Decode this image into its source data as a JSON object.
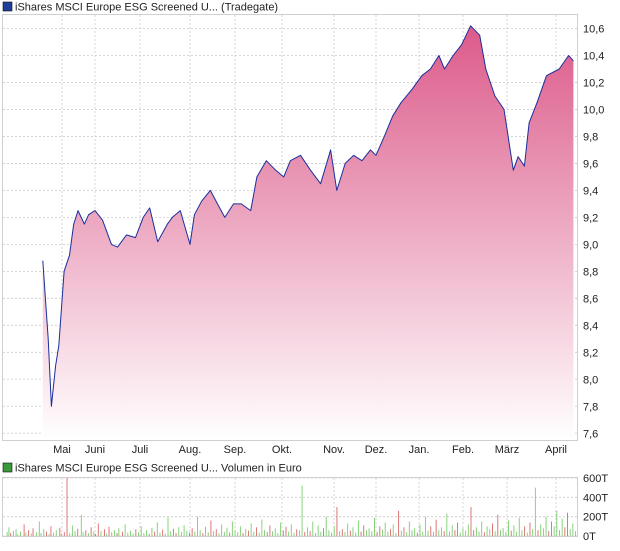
{
  "price_legend": {
    "label": "iShares MSCI Europe ESG Screened U... (Tradegate)",
    "swatch_color": "#1f3f9a"
  },
  "volume_legend": {
    "label": "iShares MSCI Europe ESG Screened U... Volumen in Euro",
    "swatch_color": "#3a9a3a"
  },
  "colors": {
    "price_line": "#1a2f9c",
    "area_top": "#dc5a8a",
    "area_bottom": "#ffffff",
    "grid": "#cccccc",
    "vol_up": "#7ccd6f",
    "vol_down": "#d86a6a"
  },
  "chart_data": [
    {
      "type": "area",
      "legend": "iShares MSCI Europe ESG Screened U... (Tradegate)",
      "x_tick_labels": [
        "Mai",
        "Juni",
        "Juli",
        "Aug.",
        "Sep.",
        "Okt.",
        "Nov.",
        "Dez.",
        "Jan.",
        "Feb.",
        "März",
        "April"
      ],
      "y_tick_labels": [
        "7,6",
        "7,8",
        "8,0",
        "8,2",
        "8,4",
        "8,6",
        "8,8",
        "9,0",
        "9,2",
        "9,4",
        "9,6",
        "9,8",
        "10,0",
        "10,2",
        "10,4",
        "10,6"
      ],
      "ylim": [
        7.55,
        10.7
      ],
      "grid": true,
      "y_axis_side": "right",
      "series": [
        {
          "x": [
            "2023-04-13",
            "2023-04-18",
            "2023-04-21",
            "2023-04-25",
            "2023-04-28",
            "2023-05-03",
            "2023-05-08",
            "2023-05-12",
            "2023-05-16",
            "2023-05-22",
            "2023-05-26",
            "2023-06-01",
            "2023-06-06",
            "2023-06-12",
            "2023-06-16",
            "2023-06-22",
            "2023-06-28",
            "2023-07-03",
            "2023-07-07",
            "2023-07-12",
            "2023-07-18",
            "2023-07-21",
            "2023-07-26",
            "2023-08-01",
            "2023-08-04",
            "2023-08-09",
            "2023-08-15",
            "2023-08-21",
            "2023-08-25",
            "2023-08-31",
            "2023-09-05",
            "2023-09-11",
            "2023-09-15",
            "2023-09-21",
            "2023-09-27",
            "2023-10-02",
            "2023-10-06",
            "2023-10-12",
            "2023-10-18",
            "2023-10-24",
            "2023-10-30",
            "2023-11-03",
            "2023-11-09",
            "2023-11-15",
            "2023-11-21",
            "2023-11-27",
            "2023-12-01",
            "2023-12-07",
            "2023-12-13",
            "2023-12-19",
            "2023-12-27",
            "2024-01-03",
            "2024-01-09",
            "2024-01-15",
            "2024-01-19",
            "2024-01-25",
            "2024-01-31",
            "2024-02-06",
            "2024-02-12",
            "2024-02-16",
            "2024-02-22",
            "2024-02-28",
            "2024-03-05",
            "2024-03-08",
            "2024-03-12",
            "2024-03-15",
            "2024-03-20",
            "2024-03-26",
            "2024-04-03",
            "2024-04-09",
            "2024-04-12"
          ],
          "values": [
            8.88,
            8.3,
            7.8,
            8.1,
            8.25,
            8.8,
            8.92,
            9.15,
            9.25,
            9.15,
            9.22,
            9.25,
            9.18,
            9.0,
            8.98,
            9.07,
            9.05,
            9.2,
            9.27,
            9.02,
            9.15,
            9.2,
            9.25,
            9.0,
            9.22,
            9.32,
            9.4,
            9.28,
            9.2,
            9.3,
            9.3,
            9.25,
            9.5,
            9.62,
            9.55,
            9.5,
            9.62,
            9.66,
            9.55,
            9.45,
            9.7,
            9.4,
            9.6,
            9.66,
            9.62,
            9.7,
            9.66,
            9.8,
            9.95,
            10.05,
            10.15,
            10.25,
            10.3,
            10.4,
            10.3,
            10.4,
            10.48,
            10.62,
            10.55,
            10.3,
            10.1,
            10.0,
            9.55,
            9.65,
            9.58,
            9.9,
            10.05,
            10.25,
            10.3,
            10.4,
            10.36
          ]
        }
      ]
    },
    {
      "type": "bar",
      "legend": "iShares MSCI Europe ESG Screened U... Volumen in Euro",
      "y_tick_labels": [
        "0T",
        "200T",
        "400T",
        "600T"
      ],
      "ylim": [
        0,
        600000
      ],
      "grid": true,
      "values": [
        0,
        0,
        0,
        40,
        0,
        90,
        0,
        30,
        0,
        0,
        55,
        0,
        0,
        70,
        0,
        20,
        0,
        0,
        45,
        0,
        0,
        0,
        120,
        0,
        35,
        0,
        0,
        60,
        0,
        0,
        25,
        0,
        80,
        0,
        0,
        0,
        40,
        0,
        0,
        150,
        0,
        30,
        0,
        0,
        70,
        0,
        0,
        45,
        0,
        0,
        20,
        0,
        100,
        0,
        0,
        35,
        0,
        0,
        60,
        0,
        0,
        0,
        85,
        0,
        25,
        0,
        0,
        40,
        0,
        0,
        600,
        0,
        0,
        30,
        0,
        0,
        110,
        0,
        0,
        50,
        0,
        0,
        75,
        0,
        0,
        0,
        220,
        0,
        40,
        0,
        0,
        60,
        0,
        0,
        30,
        0,
        0,
        90,
        0,
        0,
        45,
        0,
        20,
        0,
        0,
        130,
        0,
        0,
        50,
        0,
        0,
        0,
        70,
        0,
        25,
        0,
        0,
        95,
        0,
        0,
        40,
        0,
        0,
        60,
        0,
        0,
        30,
        0,
        80,
        0,
        0,
        0,
        45,
        0,
        0,
        120,
        0,
        0,
        35,
        0,
        0,
        55,
        0,
        0,
        25,
        0,
        0,
        70,
        0,
        0,
        40,
        0,
        0,
        100,
        0,
        0,
        30,
        0,
        0,
        60,
        0,
        0,
        20,
        0,
        0,
        85,
        0,
        0,
        45,
        0,
        0,
        140,
        0,
        0,
        35,
        0,
        0,
        65,
        0,
        0,
        25,
        0,
        0,
        190,
        0,
        0,
        50,
        0,
        0,
        75,
        0,
        0,
        30,
        0,
        0,
        90,
        0,
        0,
        40,
        0,
        0,
        110,
        0,
        0,
        55,
        0,
        0,
        35,
        0,
        0,
        80,
        0,
        0,
        45,
        0,
        0,
        200,
        0,
        0,
        60,
        0,
        0,
        30,
        0,
        0,
        95,
        0,
        0,
        40,
        0,
        0,
        160,
        0,
        0,
        50,
        0,
        0,
        70,
        0,
        0,
        25,
        0,
        0,
        120,
        0,
        0,
        45,
        0,
        0,
        85,
        0,
        0,
        35,
        0,
        0,
        150,
        0,
        0,
        60,
        0,
        0,
        40,
        0,
        0,
        100,
        0,
        0,
        30,
        0,
        0,
        75,
        0,
        0,
        55,
        0,
        0,
        130,
        0,
        0,
        45,
        0,
        0,
        90,
        0,
        0,
        35,
        0,
        0,
        170,
        0,
        0,
        60,
        0,
        0,
        40,
        0,
        0,
        110,
        0,
        0,
        50,
        0,
        0,
        80,
        0,
        0,
        30,
        0,
        0,
        140,
        0,
        0,
        55,
        0,
        0,
        95,
        0,
        0,
        45,
        0,
        0,
        120,
        0,
        0,
        35,
        0,
        0,
        70,
        0,
        0,
        60,
        0,
        0,
        520,
        0,
        0,
        40,
        0,
        0,
        90,
        0,
        0,
        50,
        0,
        0,
        150,
        0,
        0,
        30,
        0,
        0,
        110,
        0,
        0,
        45,
        0,
        0,
        80,
        0,
        0,
        200,
        0,
        0,
        60,
        0,
        0,
        35,
        0,
        0,
        100,
        0,
        0,
        300,
        0,
        0,
        50,
        0,
        0,
        70,
        0,
        0,
        40,
        0,
        0,
        130,
        0,
        0,
        55,
        0,
        0,
        90,
        0,
        0,
        35,
        0,
        0,
        160,
        0,
        0,
        45,
        0,
        0,
        110,
        0,
        0,
        60,
        0,
        0,
        80,
        0,
        0,
        50,
        0,
        0,
        190,
        0,
        0,
        40,
        0,
        0,
        100,
        0,
        0,
        65,
        0,
        0,
        140,
        0,
        0,
        45,
        0,
        0,
        70,
        0,
        0,
        120,
        0,
        0,
        30,
        0,
        0,
        260,
        0,
        0,
        55,
        0,
        0,
        90,
        0,
        0,
        40,
        0,
        0,
        150,
        0,
        0,
        60,
        0,
        0,
        80,
        0,
        0,
        35,
        0,
        0,
        120,
        0,
        0,
        45,
        0,
        0,
        200,
        0,
        0,
        55,
        0,
        0,
        100,
        0,
        0,
        40,
        0,
        0,
        170,
        0,
        0,
        60,
        0,
        0,
        90,
        0,
        0,
        50,
        0,
        0,
        230,
        0,
        0,
        45,
        0,
        0,
        110,
        0,
        0,
        60,
        0,
        0,
        140,
        0,
        0,
        35,
        0,
        0,
        80,
        0,
        0,
        55,
        0,
        0,
        120,
        0,
        0,
        300,
        0,
        0,
        60,
        0,
        0,
        90,
        0,
        0,
        45,
        0,
        0,
        150,
        0,
        0,
        40,
        0,
        0,
        100,
        0,
        0,
        70,
        0,
        0,
        130,
        0,
        0,
        50,
        0,
        0,
        220,
        0,
        0,
        60,
        0,
        0,
        80,
        0,
        0,
        40,
        0,
        0,
        160,
        0,
        0,
        55,
        0,
        0,
        110,
        0,
        0,
        45,
        0,
        0,
        190,
        0,
        0,
        60,
        0,
        0,
        100,
        0,
        0,
        35,
        0,
        0,
        140,
        0,
        0,
        70,
        0,
        0,
        500,
        0,
        0,
        60,
        0,
        0,
        120,
        0,
        0,
        80,
        0,
        0,
        200,
        0,
        0,
        50,
        0,
        0,
        150,
        0,
        0,
        100,
        0,
        0,
        260,
        0,
        0,
        60,
        0,
        0,
        180,
        0,
        0,
        90,
        0,
        0,
        240,
        0,
        0,
        70,
        0,
        0,
        130,
        0,
        0,
        50
      ]
    }
  ]
}
